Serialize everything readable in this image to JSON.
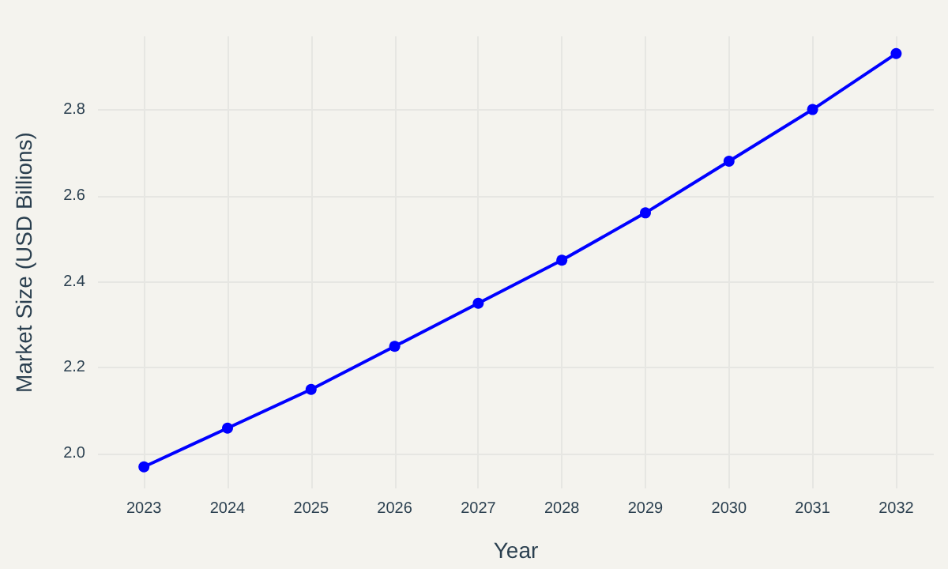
{
  "chart_data": {
    "type": "line",
    "xlabel": "Year",
    "ylabel": "Market Size (USD Billions)",
    "x": [
      2023,
      2024,
      2025,
      2026,
      2027,
      2028,
      2029,
      2030,
      2031,
      2032
    ],
    "series": [
      {
        "color": "#0000ff",
        "values": [
          1.97,
          2.06,
          2.15,
          2.25,
          2.35,
          2.45,
          2.56,
          2.68,
          2.8,
          2.93
        ]
      }
    ],
    "xlim": [
      2022.45,
      2032.45
    ],
    "xticks": [
      2023,
      2024,
      2025,
      2026,
      2027,
      2028,
      2029,
      2030,
      2031,
      2032
    ],
    "ylim": [
      1.92,
      2.97
    ],
    "yticks": [
      {
        "value": 2,
        "label": "2.0"
      },
      2.2,
      2.4,
      2.6,
      2.8
    ],
    "grid": true,
    "marker": "circle",
    "line_style": "solid"
  }
}
